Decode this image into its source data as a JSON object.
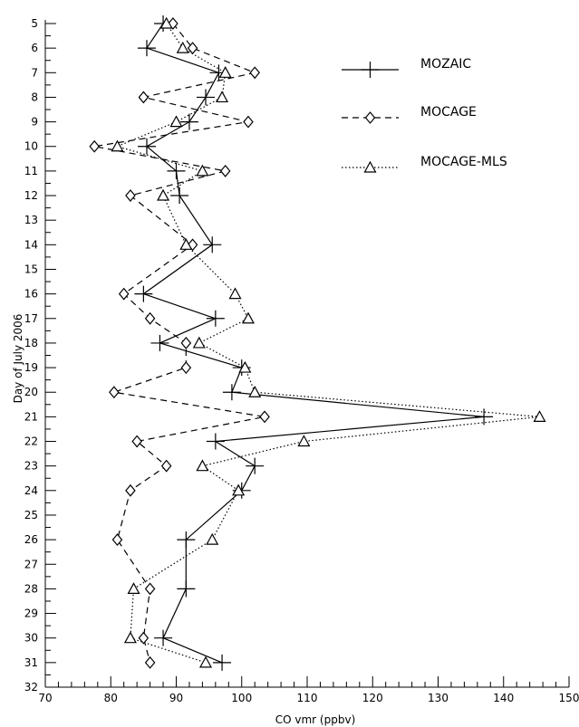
{
  "chart_data": {
    "type": "line",
    "xlabel": "CO vmr (ppbv)",
    "ylabel": "Day of July 2006",
    "xlim": [
      70,
      150
    ],
    "ylim": [
      32,
      5
    ],
    "xticks": [
      70,
      80,
      90,
      100,
      110,
      120,
      130,
      140,
      150
    ],
    "yticks": [
      5,
      6,
      7,
      8,
      9,
      10,
      11,
      12,
      13,
      14,
      15,
      16,
      17,
      18,
      19,
      20,
      21,
      22,
      23,
      24,
      25,
      26,
      27,
      28,
      29,
      30,
      31,
      32
    ],
    "grid": false,
    "legend_position": "top-right",
    "series": [
      {
        "name": "MOZAIC",
        "line_style": "solid",
        "marker": "plus",
        "color": "#000000",
        "points": [
          {
            "day": 5,
            "value": 88
          },
          {
            "day": 6,
            "value": 85.5
          },
          {
            "day": 7,
            "value": 96.5
          },
          {
            "day": 8,
            "value": 94.5
          },
          {
            "day": 9,
            "value": 92
          },
          {
            "day": 10,
            "value": 85.5
          },
          {
            "day": 11,
            "value": 90
          },
          {
            "day": 12,
            "value": 90.5
          },
          {
            "day": 14,
            "value": 95.5
          },
          {
            "day": 16,
            "value": 85
          },
          {
            "day": 17,
            "value": 96
          },
          {
            "day": 18,
            "value": 87.5
          },
          {
            "day": 19,
            "value": 100
          },
          {
            "day": 20,
            "value": 98.5
          },
          {
            "day": 21,
            "value": 137
          },
          {
            "day": 22,
            "value": 96
          },
          {
            "day": 23,
            "value": 102
          },
          {
            "day": 24,
            "value": 100
          },
          {
            "day": 26,
            "value": 91.5
          },
          {
            "day": 28,
            "value": 91.5
          },
          {
            "day": 30,
            "value": 88
          },
          {
            "day": 31,
            "value": 97
          }
        ]
      },
      {
        "name": "MOCAGE",
        "line_style": "dashed",
        "marker": "diamond",
        "color": "#000000",
        "points": [
          {
            "day": 5,
            "value": 89.5
          },
          {
            "day": 6,
            "value": 92.5
          },
          {
            "day": 7,
            "value": 102
          },
          {
            "day": 8,
            "value": 85
          },
          {
            "day": 9,
            "value": 101
          },
          {
            "day": 10,
            "value": 77.5
          },
          {
            "day": 11,
            "value": 97.5
          },
          {
            "day": 12,
            "value": 83
          },
          {
            "day": 14,
            "value": 92.5
          },
          {
            "day": 16,
            "value": 82
          },
          {
            "day": 17,
            "value": 86
          },
          {
            "day": 18,
            "value": 91.5
          },
          {
            "day": 19,
            "value": 91.5
          },
          {
            "day": 20,
            "value": 80.5
          },
          {
            "day": 21,
            "value": 103.5
          },
          {
            "day": 22,
            "value": 84
          },
          {
            "day": 23,
            "value": 88.5
          },
          {
            "day": 24,
            "value": 83
          },
          {
            "day": 26,
            "value": 81
          },
          {
            "day": 28,
            "value": 86
          },
          {
            "day": 30,
            "value": 85
          },
          {
            "day": 31,
            "value": 86
          }
        ]
      },
      {
        "name": "MOCAGE-MLS",
        "line_style": "dotted",
        "marker": "triangle",
        "color": "#000000",
        "points": [
          {
            "day": 5,
            "value": 88.5
          },
          {
            "day": 6,
            "value": 91
          },
          {
            "day": 7,
            "value": 97.5
          },
          {
            "day": 8,
            "value": 97
          },
          {
            "day": 9,
            "value": 90
          },
          {
            "day": 10,
            "value": 81
          },
          {
            "day": 11,
            "value": 94
          },
          {
            "day": 12,
            "value": 88
          },
          {
            "day": 14,
            "value": 91.5
          },
          {
            "day": 16,
            "value": 99
          },
          {
            "day": 17,
            "value": 101
          },
          {
            "day": 18,
            "value": 93.5
          },
          {
            "day": 19,
            "value": 100.5
          },
          {
            "day": 20,
            "value": 102
          },
          {
            "day": 21,
            "value": 145.5
          },
          {
            "day": 22,
            "value": 109.5
          },
          {
            "day": 23,
            "value": 94
          },
          {
            "day": 24,
            "value": 99.5
          },
          {
            "day": 26,
            "value": 95.5
          },
          {
            "day": 28,
            "value": 83.5
          },
          {
            "day": 30,
            "value": 83
          },
          {
            "day": 31,
            "value": 94.5
          }
        ]
      }
    ]
  }
}
